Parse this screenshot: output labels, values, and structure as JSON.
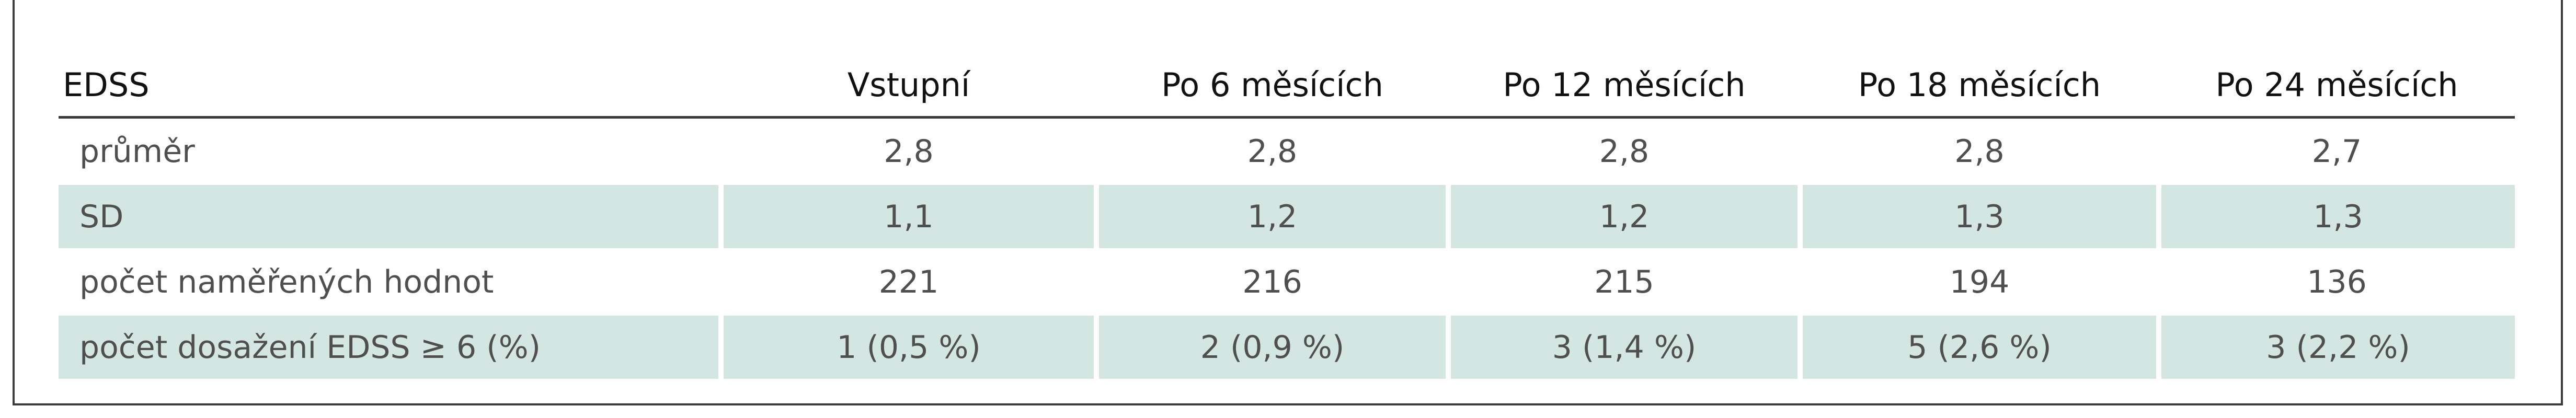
{
  "table": {
    "headers": [
      "EDSS",
      "Vstupní",
      "Po 6 měsících",
      "Po 12 měsících",
      "Po 18 měsících",
      "Po 24 měsících"
    ],
    "rows": [
      {
        "label": "průměr",
        "values": [
          "2,8",
          "2,8",
          "2,8",
          "2,8",
          "2,7"
        ]
      },
      {
        "label": "SD",
        "values": [
          "1,1",
          "1,2",
          "1,2",
          "1,3",
          "1,3"
        ]
      },
      {
        "label": "počet naměřených hodnot",
        "values": [
          "221",
          "216",
          "215",
          "194",
          "136"
        ]
      },
      {
        "label": "počet dosažení EDSS ≥ 6 (%)",
        "values": [
          "1 (0,5 %)",
          "2 (0,9 %)",
          "3 (1,4 %)",
          "5 (2,6 %)",
          "3 (2,2 %)"
        ]
      }
    ],
    "colors": {
      "row_shading": "#d3e6e1",
      "header_rule": "#3a3a3a",
      "frame": "#3c3c3c"
    }
  }
}
